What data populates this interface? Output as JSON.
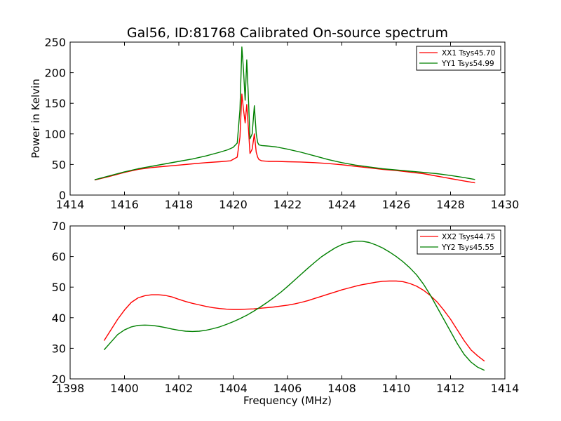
{
  "figure": {
    "title": "Gal56, ID:81768 Calibrated On-source spectrum"
  },
  "chart_data": [
    {
      "type": "line",
      "title": "Gal56, ID:81768 Calibrated On-source spectrum",
      "xlabel": "",
      "ylabel": "Power in Kelvin",
      "xlim": [
        1414,
        1430
      ],
      "ylim": [
        0,
        250
      ],
      "xticks": [
        "1414",
        "1416",
        "1418",
        "1420",
        "1422",
        "1424",
        "1426",
        "1428",
        "1430"
      ],
      "yticks": [
        "0",
        "50",
        "100",
        "150",
        "200",
        "250"
      ],
      "legend_position": "top-right",
      "grid": false,
      "series": [
        {
          "name": "XX1 Tsys45.70",
          "color": "#ff0000",
          "x": [
            1414.9,
            1415.5,
            1416.0,
            1416.5,
            1417.0,
            1417.5,
            1418.0,
            1418.5,
            1419.0,
            1419.5,
            1419.9,
            1420.15,
            1420.25,
            1420.32,
            1420.38,
            1420.44,
            1420.5,
            1420.56,
            1420.62,
            1420.7,
            1420.78,
            1420.85,
            1420.9,
            1420.95,
            1421.05,
            1421.3,
            1421.6,
            1422.0,
            1422.5,
            1423.0,
            1423.5,
            1424.0,
            1424.5,
            1425.0,
            1425.5,
            1426.0,
            1426.5,
            1427.0,
            1427.5,
            1428.0,
            1428.5,
            1428.9
          ],
          "values": [
            24.5,
            31,
            37,
            42,
            45,
            47,
            49,
            51,
            53,
            54.5,
            56,
            62,
            95,
            165,
            140,
            118,
            148,
            110,
            68,
            75,
            100,
            70,
            62,
            58,
            56,
            55,
            55,
            54.5,
            54,
            53,
            51.5,
            49.5,
            47,
            44.5,
            42,
            40,
            37.5,
            35,
            31,
            27,
            23,
            20
          ]
        },
        {
          "name": "YY1 Tsys54.99",
          "color": "#008000",
          "x": [
            1414.9,
            1415.5,
            1416.0,
            1416.5,
            1417.0,
            1417.5,
            1418.0,
            1418.5,
            1419.0,
            1419.5,
            1419.8,
            1420.0,
            1420.15,
            1420.25,
            1420.32,
            1420.38,
            1420.44,
            1420.5,
            1420.56,
            1420.62,
            1420.7,
            1420.78,
            1420.85,
            1420.9,
            1420.95,
            1421.05,
            1421.3,
            1421.6,
            1422.0,
            1422.5,
            1423.0,
            1423.5,
            1424.0,
            1424.5,
            1425.0,
            1425.5,
            1426.0,
            1426.5,
            1427.0,
            1427.5,
            1428.0,
            1428.5,
            1428.9
          ],
          "values": [
            25,
            32,
            38,
            43,
            47,
            51,
            55,
            59,
            64,
            70,
            74,
            78,
            85,
            140,
            242,
            205,
            155,
            221,
            160,
            92,
            100,
            146,
            100,
            86,
            82,
            81,
            80,
            78.5,
            75,
            70,
            64,
            58,
            53,
            49,
            46,
            43,
            41,
            39,
            37,
            35,
            32,
            28.5,
            25.5
          ]
        }
      ]
    },
    {
      "type": "line",
      "title": "",
      "xlabel": "Frequency (MHz)",
      "ylabel": "",
      "xlim": [
        1398,
        1414
      ],
      "ylim": [
        20,
        70
      ],
      "xticks": [
        "1398",
        "1400",
        "1402",
        "1404",
        "1406",
        "1408",
        "1410",
        "1412",
        "1414"
      ],
      "yticks": [
        "20",
        "30",
        "40",
        "50",
        "60",
        "70"
      ],
      "legend_position": "top-right",
      "grid": false,
      "series": [
        {
          "name": "XX2 Tsys44.75",
          "color": "#ff0000",
          "x": [
            1399.25,
            1399.5,
            1399.75,
            1400.0,
            1400.25,
            1400.5,
            1400.75,
            1401.0,
            1401.25,
            1401.5,
            1401.75,
            1402.0,
            1402.25,
            1402.5,
            1402.75,
            1403.0,
            1403.25,
            1403.5,
            1403.75,
            1404.0,
            1404.25,
            1404.5,
            1404.75,
            1405.0,
            1405.25,
            1405.5,
            1405.75,
            1406.0,
            1406.25,
            1406.5,
            1406.75,
            1407.0,
            1407.25,
            1407.5,
            1407.75,
            1408.0,
            1408.25,
            1408.5,
            1408.75,
            1409.0,
            1409.25,
            1409.5,
            1409.75,
            1410.0,
            1410.25,
            1410.5,
            1410.75,
            1411.0,
            1411.25,
            1411.5,
            1411.75,
            1412.0,
            1412.25,
            1412.5,
            1412.75,
            1413.0,
            1413.25
          ],
          "values": [
            32.5,
            36,
            39.5,
            42.5,
            45,
            46.5,
            47.2,
            47.5,
            47.5,
            47.3,
            46.8,
            46,
            45.3,
            44.7,
            44.2,
            43.7,
            43.3,
            43,
            42.8,
            42.7,
            42.7,
            42.8,
            42.9,
            43.1,
            43.3,
            43.5,
            43.8,
            44.1,
            44.5,
            45,
            45.6,
            46.3,
            47,
            47.7,
            48.4,
            49.1,
            49.7,
            50.3,
            50.8,
            51.2,
            51.6,
            51.9,
            52.0,
            52.0,
            51.8,
            51.2,
            50.3,
            49,
            47.3,
            45.2,
            42.5,
            39.5,
            36,
            32.5,
            29.5,
            27.5,
            25.8
          ]
        },
        {
          "name": "YY2 Tsys45.55",
          "color": "#008000",
          "x": [
            1399.25,
            1399.5,
            1399.75,
            1400.0,
            1400.25,
            1400.5,
            1400.75,
            1401.0,
            1401.25,
            1401.5,
            1401.75,
            1402.0,
            1402.25,
            1402.5,
            1402.75,
            1403.0,
            1403.25,
            1403.5,
            1403.75,
            1404.0,
            1404.25,
            1404.5,
            1404.75,
            1405.0,
            1405.25,
            1405.5,
            1405.75,
            1406.0,
            1406.25,
            1406.5,
            1406.75,
            1407.0,
            1407.25,
            1407.5,
            1407.75,
            1408.0,
            1408.25,
            1408.5,
            1408.75,
            1409.0,
            1409.25,
            1409.5,
            1409.75,
            1410.0,
            1410.25,
            1410.5,
            1410.75,
            1411.0,
            1411.25,
            1411.5,
            1411.75,
            1412.0,
            1412.25,
            1412.5,
            1412.75,
            1413.0,
            1413.25
          ],
          "values": [
            29.5,
            32,
            34.5,
            36,
            37,
            37.5,
            37.6,
            37.5,
            37.2,
            36.8,
            36.3,
            35.9,
            35.6,
            35.5,
            35.6,
            35.9,
            36.4,
            37,
            37.8,
            38.7,
            39.7,
            40.8,
            42.1,
            43.5,
            45,
            46.6,
            48.3,
            50.2,
            52.2,
            54.2,
            56.2,
            58.1,
            59.9,
            61.4,
            62.8,
            63.9,
            64.6,
            65,
            65,
            64.6,
            63.8,
            62.8,
            61.5,
            60,
            58.3,
            56.3,
            54,
            51,
            47.5,
            43.5,
            39.5,
            35.5,
            31.5,
            28,
            25.5,
            23.8,
            22.8
          ]
        }
      ]
    }
  ]
}
